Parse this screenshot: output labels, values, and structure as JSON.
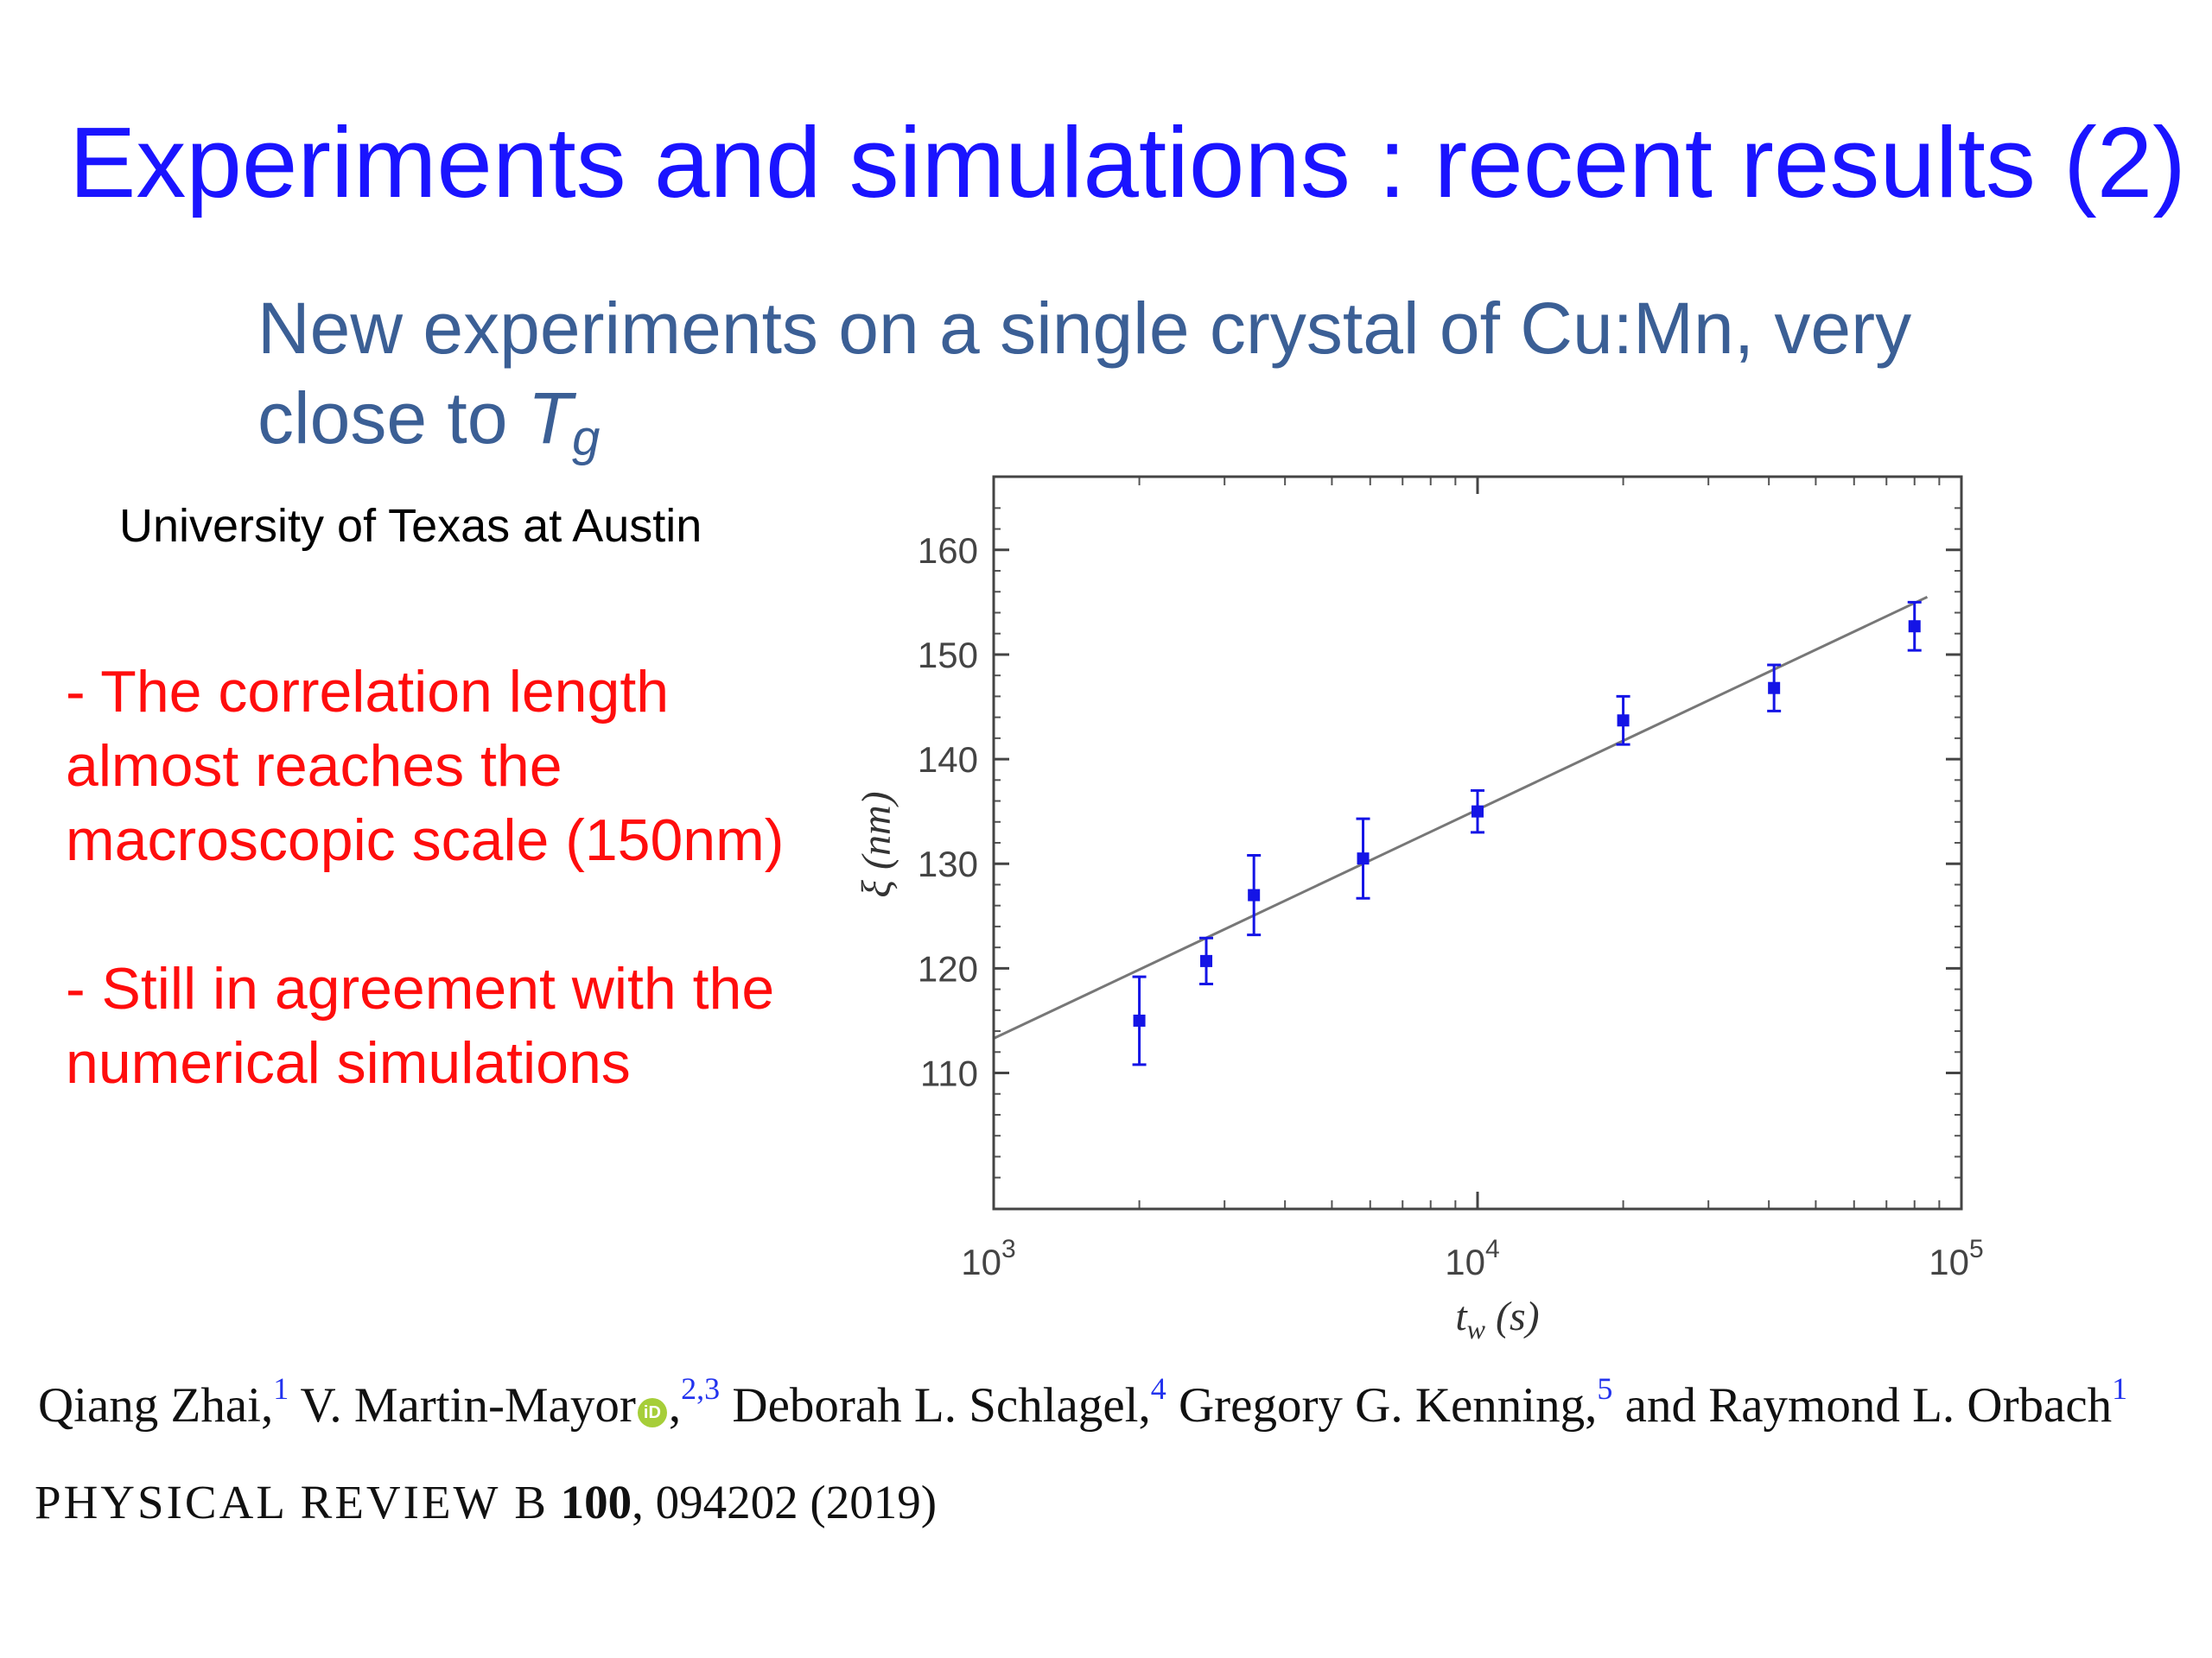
{
  "slide": {
    "title": "Experiments and simulations : recent results (2)",
    "subtitle": "New experiments on a single crystal of Cu:Mn, very close to",
    "subtitle_symbol": "T",
    "subtitle_subscript": "g",
    "affiliation": "University of Texas at Austin",
    "points": [
      "- The correlation length almost reaches the macroscopic scale (150nm)",
      "- Still in agreement with the numerical simulations"
    ]
  },
  "reference": {
    "authors": [
      {
        "name": "Qiang Zhai,",
        "sup": "1"
      },
      {
        "name": "V. Martin-Mayor",
        "sup": "2,3",
        "orcid": true
      },
      {
        "name": "Deborah L. Schlagel,",
        "sup": "4"
      },
      {
        "name": "Gregory G. Kenning,",
        "sup": "5"
      },
      {
        "name": "and Raymond L. Orbach",
        "sup": "1"
      }
    ],
    "journal": "PHYSICAL REVIEW B",
    "volume": "100",
    "pages_year": ", 094202 (2019)"
  },
  "colors": {
    "title": "#1a14ff",
    "subtitle": "#3b5f95",
    "points": "#ff0d0d",
    "data": "#1414e6",
    "fit_line": "#777777"
  },
  "chart_data": {
    "type": "scatter",
    "xscale": "log",
    "xlim": [
      1000,
      100000
    ],
    "ylim": [
      97,
      167
    ],
    "xlabel": "t_w (s)",
    "ylabel": "ξ (nm)",
    "xticks": [
      "10^3",
      "10^4",
      "10^5"
    ],
    "yticks": [
      110,
      120,
      130,
      140,
      150,
      160
    ],
    "grid": false,
    "points": [
      {
        "x": 2000,
        "y": 115.0,
        "err": 4.2
      },
      {
        "x": 2750,
        "y": 120.7,
        "err": 2.2
      },
      {
        "x": 3450,
        "y": 127.0,
        "err": 3.8
      },
      {
        "x": 5800,
        "y": 130.5,
        "err": 3.8
      },
      {
        "x": 10000,
        "y": 135.0,
        "err": 2.0
      },
      {
        "x": 20000,
        "y": 143.7,
        "err": 2.3
      },
      {
        "x": 41000,
        "y": 146.8,
        "err": 2.2
      },
      {
        "x": 80000,
        "y": 152.7,
        "err": 2.3
      }
    ],
    "fit": {
      "x": [
        1000,
        85000
      ],
      "y": [
        113.3,
        155.5
      ]
    }
  }
}
